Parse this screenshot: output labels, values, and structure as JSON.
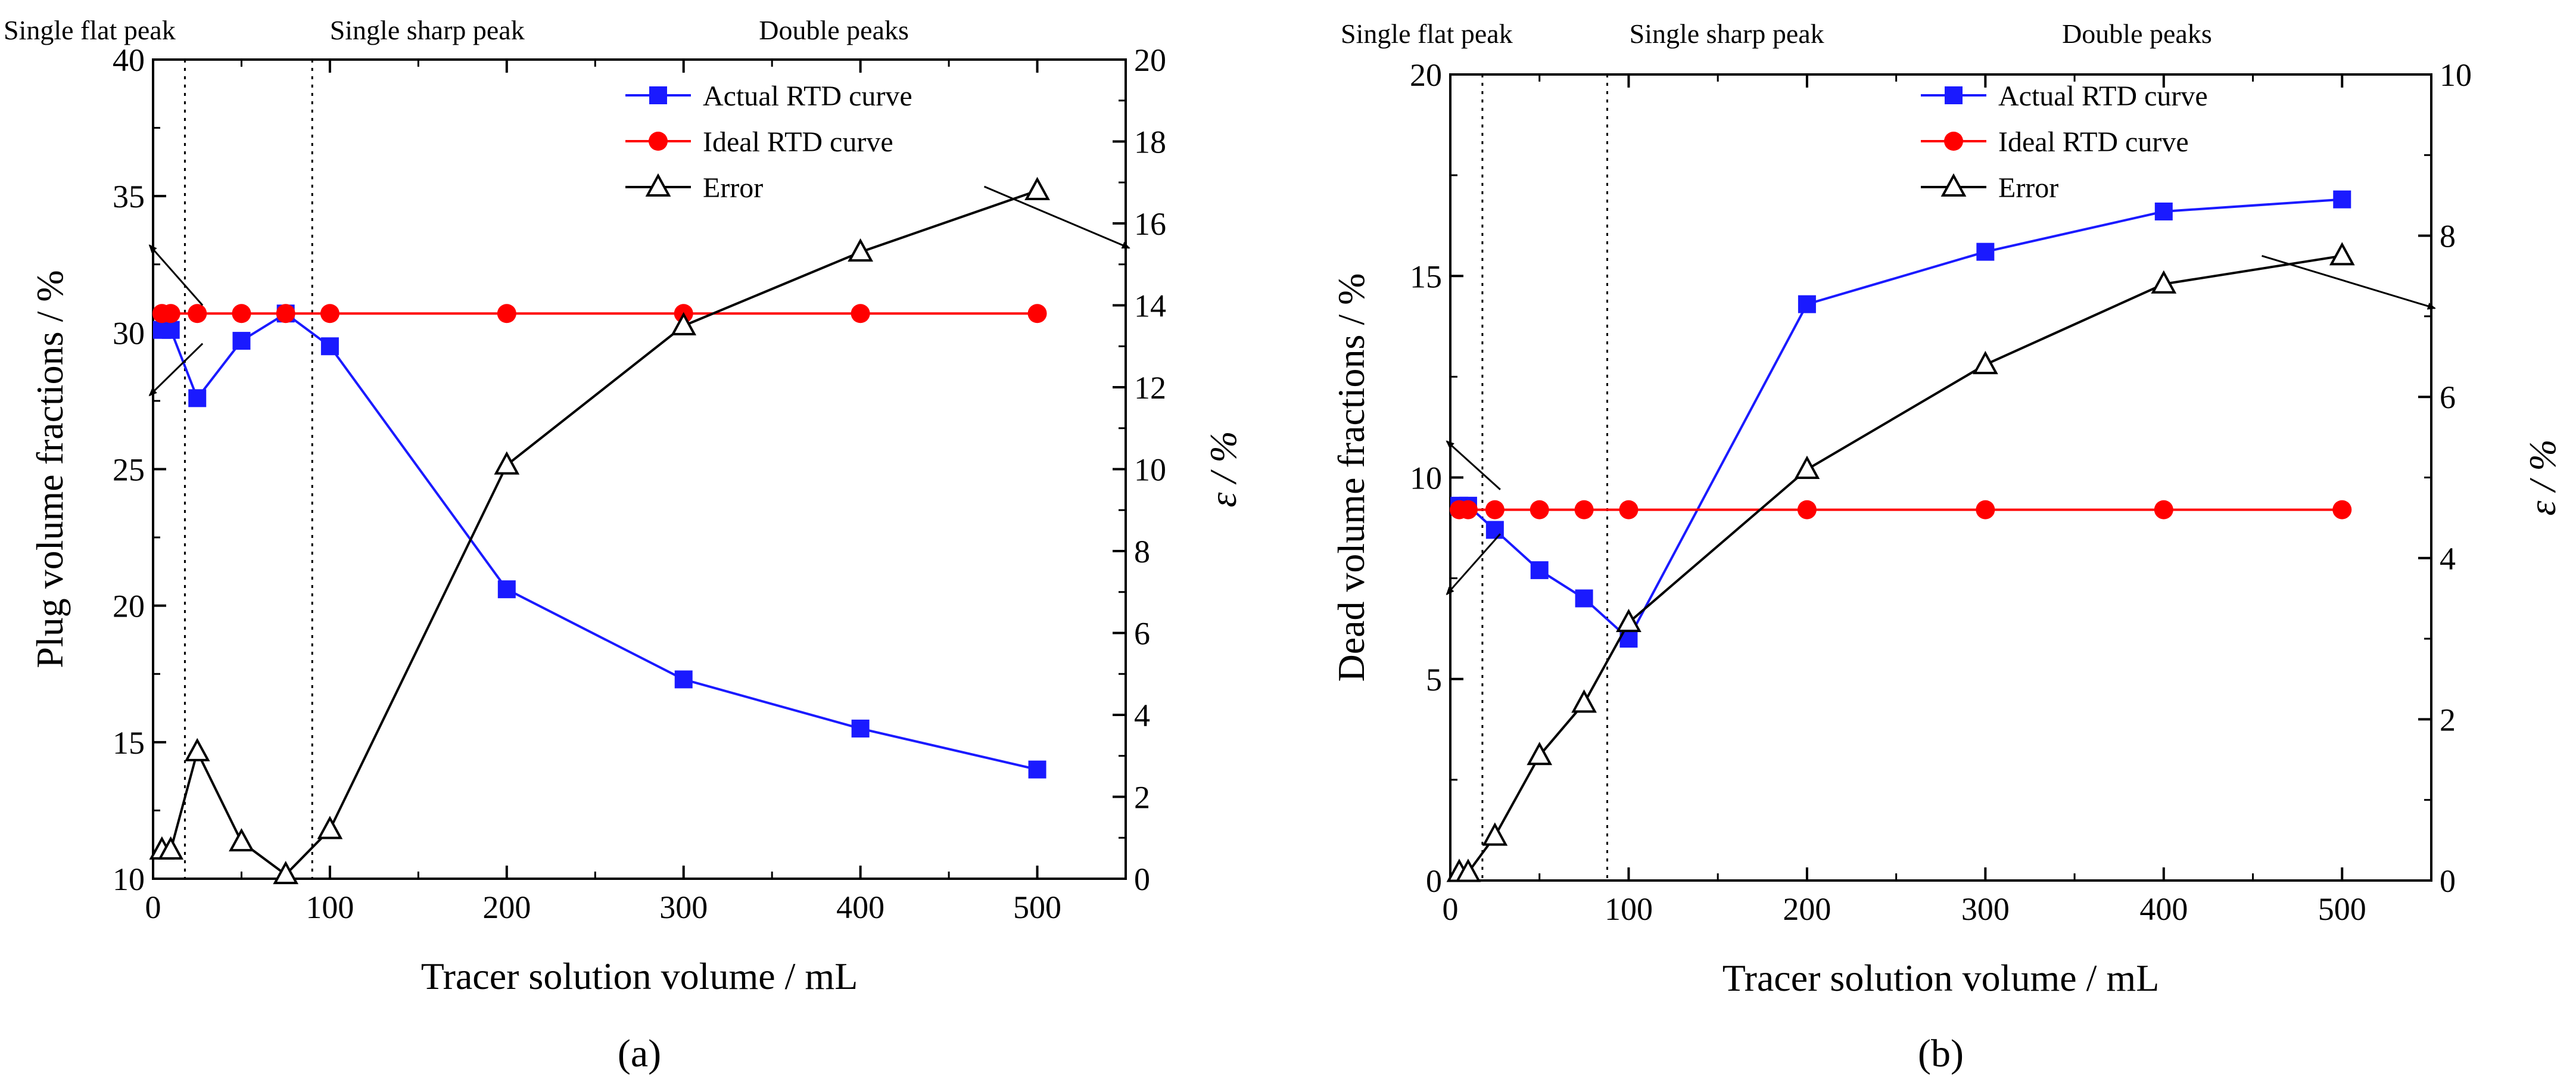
{
  "colors": {
    "actual": "#1a1aff",
    "ideal": "#ff0000",
    "error": "#000000",
    "axis": "#000000"
  },
  "chart_data": [
    {
      "type": "line",
      "panel_label": "(a)",
      "xlabel": "Tracer solution volume / mL",
      "ylabel": "Plug volume fractions / %",
      "y2label": "ε / %",
      "xlim": [
        0,
        550
      ],
      "ylim": [
        10,
        40
      ],
      "y2lim": [
        0,
        20
      ],
      "xticks": [
        0,
        100,
        200,
        300,
        400,
        500
      ],
      "yticks": [
        10,
        15,
        20,
        25,
        30,
        35,
        40
      ],
      "y2ticks": [
        0,
        2,
        4,
        6,
        8,
        10,
        12,
        14,
        16,
        18,
        20
      ],
      "legend_position": "top-right",
      "region_labels": [
        {
          "text": "Single flat peak",
          "x": 0,
          "anchor": "start"
        },
        {
          "text": "Single sharp peak",
          "x": 155,
          "anchor": "middle"
        },
        {
          "text": "Double peaks",
          "x": 385,
          "anchor": "middle"
        }
      ],
      "dividers": [
        18,
        90
      ],
      "series": [
        {
          "name": "Actual RTD curve",
          "axis": "left",
          "marker": "square",
          "color": "#1a1aff",
          "x": [
            5,
            10,
            25,
            50,
            75,
            100,
            200,
            300,
            400,
            500
          ],
          "y": [
            30.1,
            30.1,
            27.6,
            29.7,
            30.7,
            29.5,
            20.6,
            17.3,
            15.5,
            14.0
          ]
        },
        {
          "name": "Ideal RTD curve",
          "axis": "left",
          "marker": "circle",
          "color": "#ff0000",
          "x": [
            5,
            10,
            25,
            50,
            75,
            100,
            200,
            300,
            400,
            500
          ],
          "y": [
            30.7,
            30.7,
            30.7,
            30.7,
            30.7,
            30.7,
            30.7,
            30.7,
            30.7,
            30.7
          ]
        },
        {
          "name": "Error",
          "axis": "right",
          "marker": "triangle",
          "color": "#000000",
          "x": [
            5,
            10,
            25,
            50,
            75,
            100,
            200,
            300,
            400,
            500
          ],
          "y": [
            0.7,
            0.7,
            3.1,
            0.9,
            0.1,
            1.2,
            10.1,
            13.5,
            15.3,
            16.8
          ]
        }
      ],
      "arrows": [
        {
          "from": [
            28,
            31.0
          ],
          "to": [
            -2,
            33.2
          ],
          "axis": "left"
        },
        {
          "from": [
            28,
            29.6
          ],
          "to": [
            -2,
            27.7
          ],
          "axis": "left"
        },
        {
          "from": [
            470,
            16.9
          ],
          "to": [
            552,
            15.4
          ],
          "axis": "right"
        }
      ]
    },
    {
      "type": "line",
      "panel_label": "(b)",
      "xlabel": "Tracer solution volume / mL",
      "ylabel": "Dead volume fractions / %",
      "y2label": "ε / %",
      "xlim": [
        0,
        550
      ],
      "ylim": [
        0,
        20
      ],
      "y2lim": [
        0,
        10
      ],
      "xticks": [
        0,
        100,
        200,
        300,
        400,
        500
      ],
      "yticks": [
        0,
        5,
        10,
        15,
        20
      ],
      "y2ticks": [
        0,
        2,
        4,
        6,
        8,
        10
      ],
      "legend_position": "top-right",
      "region_labels": [
        {
          "text": "Single flat peak",
          "x": 0,
          "anchor": "start"
        },
        {
          "text": "Single sharp peak",
          "x": 155,
          "anchor": "middle"
        },
        {
          "text": "Double peaks",
          "x": 385,
          "anchor": "middle"
        }
      ],
      "dividers": [
        18,
        88
      ],
      "series": [
        {
          "name": "Actual RTD curve",
          "axis": "left",
          "marker": "square",
          "color": "#1a1aff",
          "x": [
            5,
            10,
            25,
            50,
            75,
            100,
            200,
            300,
            400,
            500
          ],
          "y": [
            9.3,
            9.3,
            8.7,
            7.7,
            7.0,
            6.0,
            14.3,
            15.6,
            16.6,
            16.9
          ]
        },
        {
          "name": "Ideal RTD curve",
          "axis": "left",
          "marker": "circle",
          "color": "#ff0000",
          "x": [
            5,
            10,
            25,
            50,
            75,
            100,
            200,
            300,
            400,
            500
          ],
          "y": [
            9.2,
            9.2,
            9.2,
            9.2,
            9.2,
            9.2,
            9.2,
            9.2,
            9.2,
            9.2
          ]
        },
        {
          "name": "Error",
          "axis": "right",
          "marker": "triangle",
          "color": "#000000",
          "x": [
            5,
            10,
            25,
            50,
            75,
            100,
            200,
            300,
            400,
            500
          ],
          "y": [
            0.1,
            0.1,
            0.55,
            1.55,
            2.2,
            3.2,
            5.1,
            6.4,
            7.4,
            7.75
          ]
        }
      ],
      "arrows": [
        {
          "from": [
            28,
            9.7
          ],
          "to": [
            -2,
            10.9
          ],
          "axis": "left"
        },
        {
          "from": [
            28,
            8.6
          ],
          "to": [
            -2,
            7.1
          ],
          "axis": "left"
        },
        {
          "from": [
            455,
            7.75
          ],
          "to": [
            552,
            7.1
          ],
          "axis": "right"
        }
      ]
    }
  ]
}
